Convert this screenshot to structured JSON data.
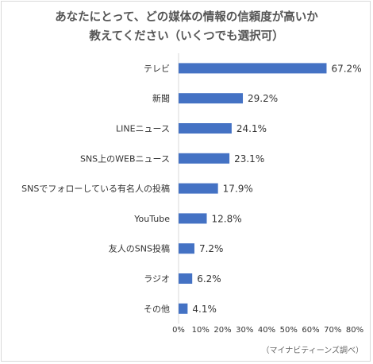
{
  "title_lines": [
    "あなたにとって、どの媒体の情報の信頼度が高いか",
    "教えてください（いくつでも選択可）"
  ],
  "source": "（マイナビティーンズ調べ）",
  "colors": {
    "bar": "#4472c4",
    "grid": "#d9d9d9",
    "text": "#333333"
  },
  "chart_data": {
    "type": "bar",
    "orientation": "horizontal",
    "categories": [
      "テレビ",
      "新聞",
      "LINEニュース",
      "SNS上のWEBニュース",
      "SNSでフォローしている有名人の投稿",
      "YouTube",
      "友人のSNS投稿",
      "ラジオ",
      "その他"
    ],
    "values": [
      67.2,
      29.2,
      24.1,
      23.1,
      17.9,
      12.8,
      7.2,
      6.2,
      4.1
    ],
    "value_labels": [
      "67.2%",
      "29.2%",
      "24.1%",
      "23.1%",
      "17.9%",
      "12.8%",
      "7.2%",
      "6.2%",
      "4.1%"
    ],
    "xlim": [
      0,
      80
    ],
    "xticks": [
      0,
      10,
      20,
      30,
      40,
      50,
      60,
      70,
      80
    ],
    "xtick_labels": [
      "0%",
      "10%",
      "20%",
      "30%",
      "40%",
      "50%",
      "60%",
      "70%",
      "80%"
    ],
    "grid": false
  }
}
